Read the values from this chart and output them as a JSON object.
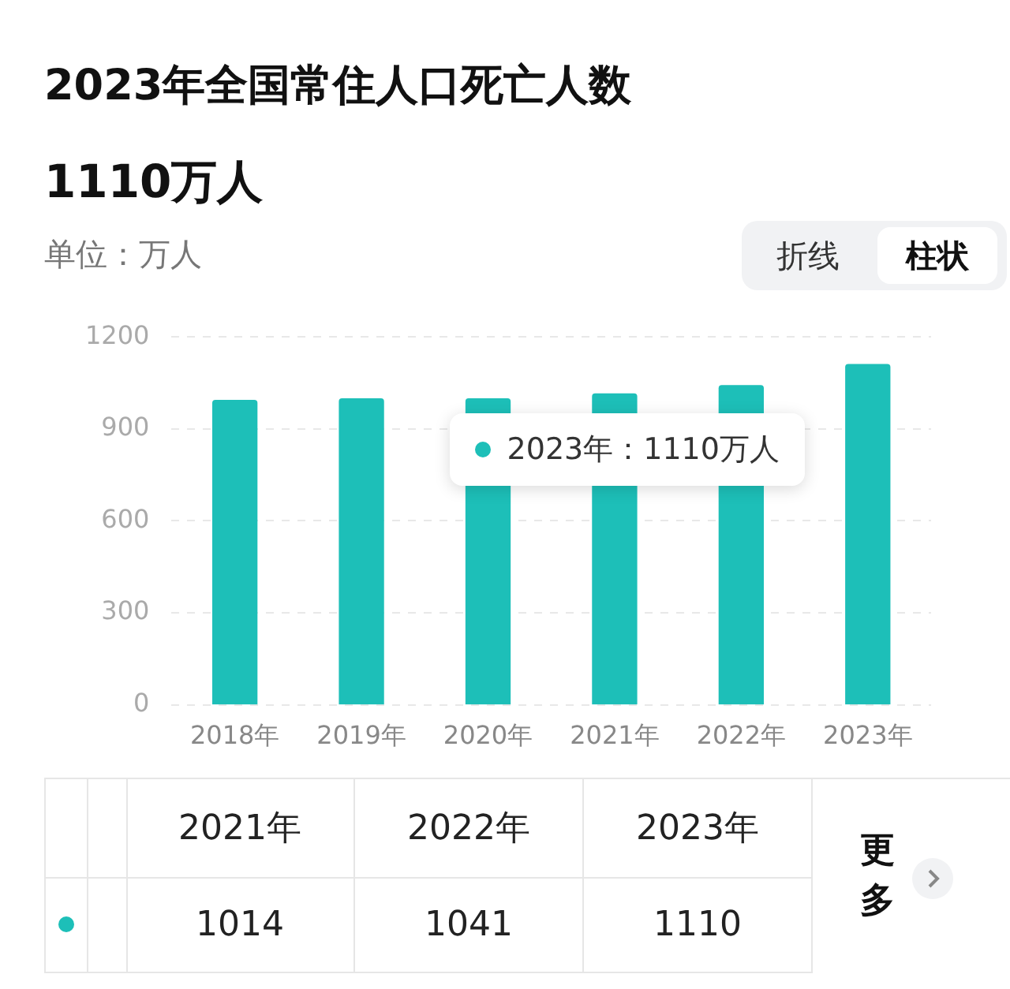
{
  "chart_data": {
    "type": "bar",
    "title": "2023年全国常住人口死亡人数",
    "subtitle": "1110万人",
    "categories": [
      "2018年",
      "2019年",
      "2020年",
      "2021年",
      "2022年",
      "2023年"
    ],
    "values": [
      993,
      998,
      998,
      1014,
      1041,
      1110
    ],
    "color": "#1dbfb8",
    "ylim": [
      0,
      1200
    ],
    "yticks": [
      0,
      300,
      600,
      900,
      1200
    ],
    "grid": "y",
    "legend": false,
    "annotations": [
      "单位：万人",
      "折线",
      "柱状",
      "更多",
      "2023年：1110万人",
      "2021年",
      "2022年",
      "2023年",
      "1014",
      "1041",
      "1110"
    ]
  }
}
